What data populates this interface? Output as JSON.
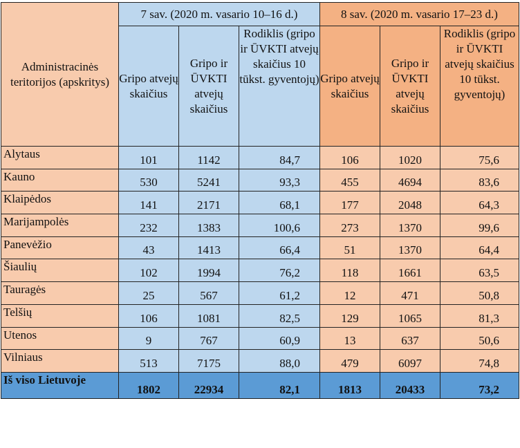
{
  "table": {
    "region_header": "Administracinės teritorijos (apskritys)",
    "week7_header": "7 sav. (2020 m. vasario 10–16 d.)",
    "week8_header": "8 sav. (2020 m. vasario 17–23 d.)",
    "col_flu": "Gripo atvejų skaičius",
    "col_flu_ari": "Gripo ir ŪVKTI atvejų skaičius",
    "col_rate": "Rodiklis (gripo ir ŪVKTI atvejų skaičius 10 tūkst. gyventojų)",
    "rows": [
      {
        "region": "Alytaus",
        "w7_flu": "101",
        "w7_total": "1142",
        "w7_rate": "84,7",
        "w8_flu": "106",
        "w8_total": "1020",
        "w8_rate": "75,6"
      },
      {
        "region": "Kauno",
        "w7_flu": "530",
        "w7_total": "5241",
        "w7_rate": "93,3",
        "w8_flu": "455",
        "w8_total": "4694",
        "w8_rate": "83,6"
      },
      {
        "region": "Klaipėdos",
        "w7_flu": "141",
        "w7_total": "2171",
        "w7_rate": "68,1",
        "w8_flu": "177",
        "w8_total": "2048",
        "w8_rate": "64,3"
      },
      {
        "region": "Marijampolės",
        "w7_flu": "232",
        "w7_total": "1383",
        "w7_rate": "100,6",
        "w8_flu": "273",
        "w8_total": "1370",
        "w8_rate": "99,6"
      },
      {
        "region": "Panevėžio",
        "w7_flu": "43",
        "w7_total": "1413",
        "w7_rate": "66,4",
        "w8_flu": "51",
        "w8_total": "1370",
        "w8_rate": "64,4"
      },
      {
        "region": "Šiaulių",
        "w7_flu": "102",
        "w7_total": "1994",
        "w7_rate": "76,2",
        "w8_flu": "118",
        "w8_total": "1661",
        "w8_rate": "63,5"
      },
      {
        "region": "Tauragės",
        "w7_flu": "25",
        "w7_total": "567",
        "w7_rate": "61,2",
        "w8_flu": "12",
        "w8_total": "471",
        "w8_rate": "50,8"
      },
      {
        "region": "Telšių",
        "w7_flu": "106",
        "w7_total": "1081",
        "w7_rate": "82,5",
        "w8_flu": "129",
        "w8_total": "1065",
        "w8_rate": "81,3"
      },
      {
        "region": "Utenos",
        "w7_flu": "9",
        "w7_total": "767",
        "w7_rate": "60,9",
        "w8_flu": "13",
        "w8_total": "637",
        "w8_rate": "50,6"
      },
      {
        "region": "Vilniaus",
        "w7_flu": "513",
        "w7_total": "7175",
        "w7_rate": "88,0",
        "w8_flu": "479",
        "w8_total": "6097",
        "w8_rate": "74,8"
      }
    ],
    "total": {
      "region": "Iš viso Lietuvoje",
      "w7_flu": "1802",
      "w7_total": "22934",
      "w7_rate": "82,1",
      "w8_flu": "1813",
      "w8_total": "20433",
      "w8_rate": "73,2"
    }
  }
}
